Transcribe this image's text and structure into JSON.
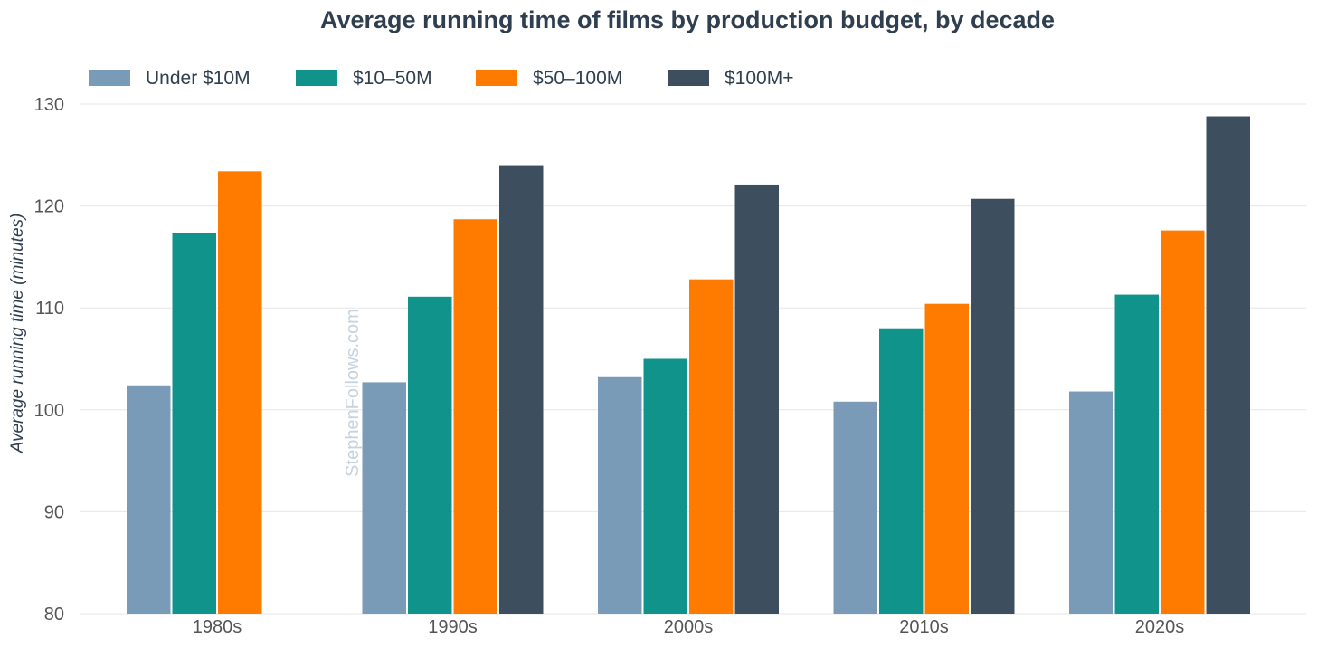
{
  "chart_data": {
    "type": "bar",
    "title": "Average running time of films by production budget, by decade",
    "xlabel": "",
    "ylabel": "Average running time (minutes)",
    "ylim": [
      80,
      130
    ],
    "yticks": [
      80,
      90,
      100,
      110,
      120,
      130
    ],
    "grid": true,
    "legend_position": "top-left",
    "watermark": "StephenFollows.com",
    "categories": [
      "1980s",
      "1990s",
      "2000s",
      "2010s",
      "2020s"
    ],
    "series": [
      {
        "name": "Under $10M",
        "color": "#7a9bb7",
        "values": [
          102.4,
          102.7,
          103.2,
          100.8,
          101.8
        ]
      },
      {
        "name": "$10–50M",
        "color": "#10938b",
        "values": [
          117.3,
          111.1,
          105.0,
          108.0,
          111.3
        ]
      },
      {
        "name": "$50–100M",
        "color": "#ff7b00",
        "values": [
          123.4,
          118.7,
          112.8,
          110.4,
          117.6
        ]
      },
      {
        "name": "$100M+",
        "color": "#3d4f5e",
        "values": [
          null,
          124.0,
          122.1,
          120.7,
          128.8
        ]
      }
    ]
  },
  "colors": {
    "title": "#2f3f4f",
    "tick_label": "#555555",
    "grid": "#e6e6e6",
    "watermark": "#c5d3de",
    "axis_label": "#2f3f4f"
  }
}
